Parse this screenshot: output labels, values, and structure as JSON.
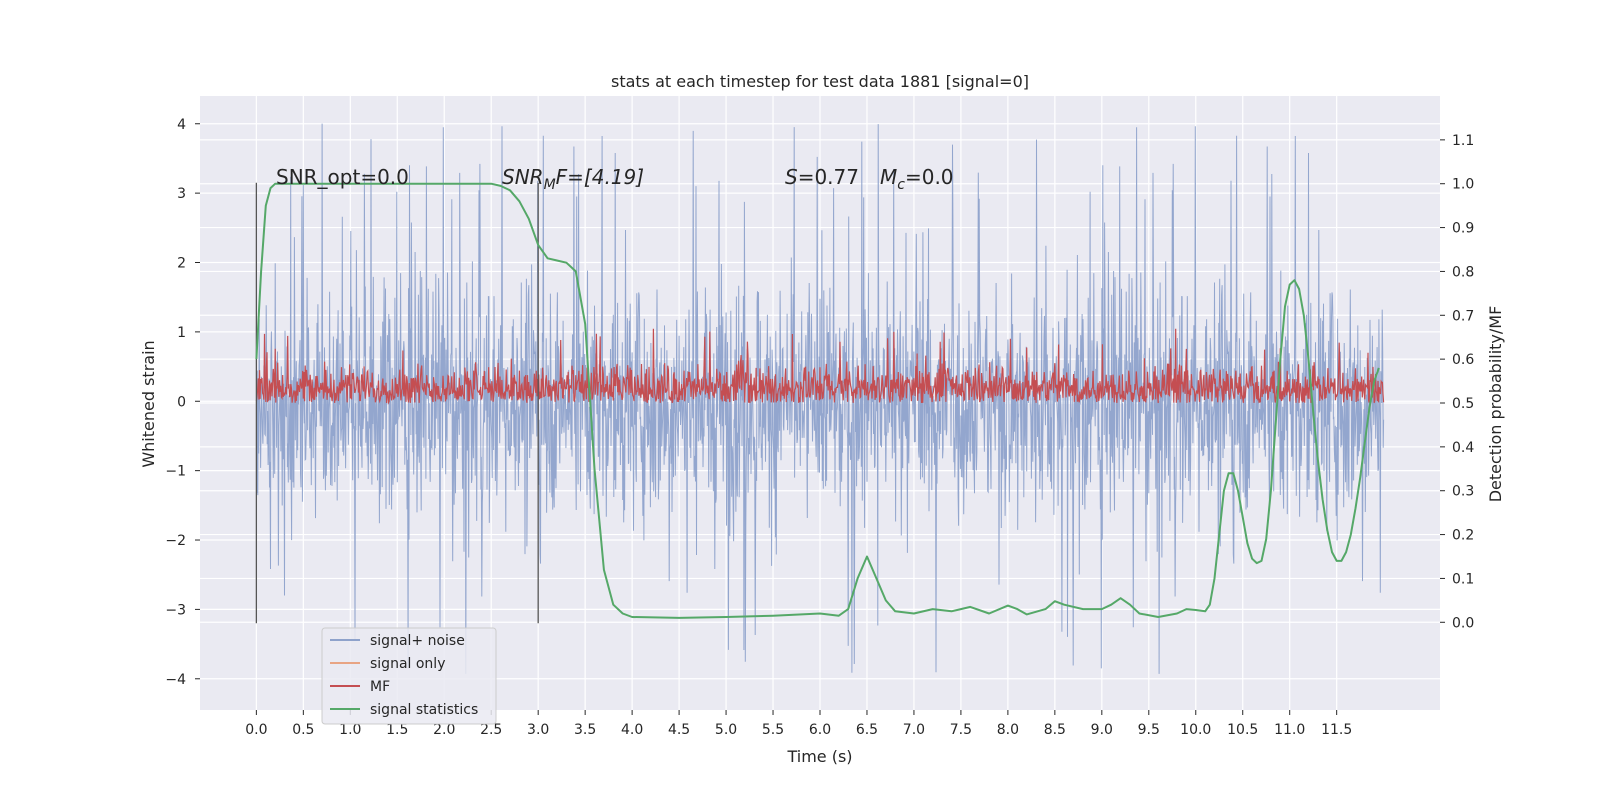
{
  "chart_data": {
    "type": "line",
    "title": "stats at each timestep for test data 1881 [signal=0]",
    "xlabel": "Time (s)",
    "ylabel": "Whitened strain",
    "ylabel_right": "Detection probability/MF",
    "xlim": [
      -0.6,
      12.6
    ],
    "ylim": [
      -4.45,
      4.4
    ],
    "ylim_right": [
      -0.2,
      1.2
    ],
    "grid": true,
    "legend_position": "lower-left",
    "x_ticks": [
      0.0,
      0.5,
      1.0,
      1.5,
      2.0,
      2.5,
      3.0,
      3.5,
      4.0,
      4.5,
      5.0,
      5.5,
      6.0,
      6.5,
      7.0,
      7.5,
      8.0,
      8.5,
      9.0,
      9.5,
      10.0,
      10.5,
      11.0,
      11.5
    ],
    "x_tick_labels": [
      "0.0",
      "0.5",
      "1.0",
      "1.5",
      "2.0",
      "2.5",
      "3.0",
      "3.5",
      "4.0",
      "4.5",
      "5.0",
      "5.5",
      "6.0",
      "6.5",
      "7.0",
      "7.5",
      "8.0",
      "8.5",
      "9.0",
      "9.5",
      "10.0",
      "10.5",
      "11.0",
      "11.5"
    ],
    "y_ticks": [
      -4,
      -3,
      -2,
      -1,
      0,
      1,
      2,
      3,
      4
    ],
    "y_tick_labels": [
      "−4",
      "−3",
      "−2",
      "−1",
      "0",
      "1",
      "2",
      "3",
      "4"
    ],
    "y_ticks_right": [
      0.0,
      0.1,
      0.2,
      0.3,
      0.4,
      0.5,
      0.6,
      0.7,
      0.8,
      0.9,
      1.0,
      1.1
    ],
    "y_tick_labels_right": [
      "0.0",
      "0.1",
      "0.2",
      "0.3",
      "0.4",
      "0.5",
      "0.6",
      "0.7",
      "0.8",
      "0.9",
      "1.0",
      "1.1"
    ],
    "annotations": {
      "snr_opt": "SNR_opt=0.0",
      "snr_mf_main": "SNR",
      "snr_mf_sub": "M",
      "snr_mf_rest": "F=[4.19]",
      "s_label": "S",
      "s_value": "=0.77",
      "mc_label": "M",
      "mc_sub": "c",
      "mc_value": "=0.0"
    },
    "vertical_lines": [
      {
        "x": 0.0,
        "ymin": -3.2,
        "ymax": 3.15
      },
      {
        "x": 3.0,
        "ymin": -3.2,
        "ymax": 3.15
      }
    ],
    "series": [
      {
        "name": "signal+ noise",
        "color": "#8ea2cb",
        "axis": "left",
        "envelope": {
          "x": [
            0.0,
            12.0
          ],
          "typical_range": [
            -2.2,
            2.2
          ],
          "peak_range": [
            -4.1,
            4.05
          ]
        }
      },
      {
        "name": "signal only",
        "color": "#e8a483",
        "axis": "left",
        "values": []
      },
      {
        "name": "MF",
        "color": "#c44e52",
        "axis": "right",
        "envelope": {
          "x": [
            0.0,
            12.0
          ],
          "typical_range": [
            0.5,
            0.6
          ],
          "peak_range": [
            0.5,
            0.67
          ]
        }
      },
      {
        "name": "signal statistics",
        "color": "#55a868",
        "axis": "right",
        "x": [
          0.0,
          0.05,
          0.1,
          0.15,
          0.2,
          0.3,
          0.5,
          1.0,
          1.5,
          2.0,
          2.5,
          2.6,
          2.7,
          2.8,
          2.9,
          3.0,
          3.1,
          3.2,
          3.3,
          3.4,
          3.5,
          3.6,
          3.7,
          3.8,
          3.9,
          4.0,
          4.5,
          5.0,
          5.5,
          6.0,
          6.2,
          6.3,
          6.4,
          6.5,
          6.6,
          6.7,
          6.8,
          7.0,
          7.2,
          7.4,
          7.5,
          7.6,
          7.8,
          8.0,
          8.1,
          8.2,
          8.4,
          8.5,
          8.6,
          8.8,
          9.0,
          9.1,
          9.2,
          9.3,
          9.4,
          9.6,
          9.8,
          9.9,
          10.0,
          10.1,
          10.15,
          10.2,
          10.25,
          10.3,
          10.35,
          10.4,
          10.45,
          10.5,
          10.55,
          10.6,
          10.65,
          10.7,
          10.75,
          10.8,
          10.85,
          10.9,
          10.95,
          11.0,
          11.05,
          11.1,
          11.15,
          11.2,
          11.25,
          11.3,
          11.35,
          11.4,
          11.45,
          11.5,
          11.55,
          11.6,
          11.65,
          11.7,
          11.75,
          11.8,
          11.85,
          11.9,
          11.95
        ],
        "values": [
          0.6,
          0.8,
          0.95,
          0.99,
          1.0,
          1.0,
          1.0,
          1.0,
          1.0,
          1.0,
          1.0,
          0.995,
          0.985,
          0.96,
          0.92,
          0.86,
          0.83,
          0.825,
          0.82,
          0.8,
          0.68,
          0.35,
          0.12,
          0.04,
          0.02,
          0.012,
          0.01,
          0.012,
          0.015,
          0.02,
          0.015,
          0.03,
          0.1,
          0.15,
          0.1,
          0.05,
          0.025,
          0.02,
          0.03,
          0.025,
          0.03,
          0.035,
          0.02,
          0.038,
          0.03,
          0.018,
          0.03,
          0.048,
          0.04,
          0.03,
          0.03,
          0.04,
          0.055,
          0.04,
          0.02,
          0.012,
          0.02,
          0.03,
          0.028,
          0.025,
          0.04,
          0.1,
          0.2,
          0.3,
          0.34,
          0.34,
          0.3,
          0.24,
          0.18,
          0.145,
          0.135,
          0.14,
          0.19,
          0.3,
          0.45,
          0.6,
          0.72,
          0.77,
          0.78,
          0.76,
          0.7,
          0.6,
          0.48,
          0.37,
          0.28,
          0.21,
          0.16,
          0.14,
          0.14,
          0.16,
          0.2,
          0.26,
          0.33,
          0.41,
          0.49,
          0.55,
          0.58
        ]
      }
    ]
  }
}
